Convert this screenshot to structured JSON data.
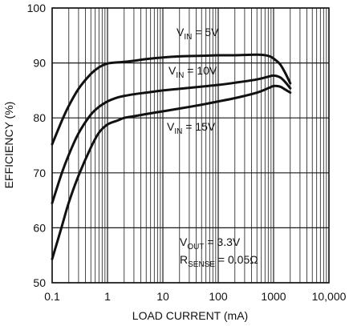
{
  "chart_data": {
    "type": "line",
    "xlabel": "LOAD CURRENT (mA)",
    "ylabel": "EFFICIENCY (%)",
    "x_scale": "log",
    "xlim": [
      0.1,
      10000
    ],
    "ylim": [
      50,
      100
    ],
    "x_ticks": [
      {
        "value": 0.1,
        "label": "0.1"
      },
      {
        "value": 1,
        "label": "1"
      },
      {
        "value": 10,
        "label": "10"
      },
      {
        "value": 100,
        "label": "100"
      },
      {
        "value": 1000,
        "label": "1000"
      },
      {
        "value": 10000,
        "label": "10,000"
      }
    ],
    "y_ticks": [
      {
        "value": 50,
        "label": "50"
      },
      {
        "value": 60,
        "label": "60"
      },
      {
        "value": 70,
        "label": "70"
      },
      {
        "value": 80,
        "label": "80"
      },
      {
        "value": 90,
        "label": "90"
      },
      {
        "value": 100,
        "label": "100"
      }
    ],
    "grid": true,
    "series": [
      {
        "name_main": "V",
        "name_sub": "IN",
        "name_rest": " = 5V",
        "points": [
          [
            0.1,
            75.2
          ],
          [
            0.15,
            79.5
          ],
          [
            0.2,
            82.2
          ],
          [
            0.3,
            85.3
          ],
          [
            0.5,
            88.0
          ],
          [
            0.7,
            89.2
          ],
          [
            1,
            89.9
          ],
          [
            1.5,
            90.1
          ],
          [
            2,
            90.2
          ],
          [
            3,
            90.4
          ],
          [
            5,
            90.7
          ],
          [
            10,
            91.0
          ],
          [
            20,
            91.2
          ],
          [
            50,
            91.3
          ],
          [
            100,
            91.4
          ],
          [
            200,
            91.4
          ],
          [
            500,
            91.5
          ],
          [
            800,
            91.3
          ],
          [
            1000,
            90.8
          ],
          [
            1300,
            89.8
          ],
          [
            1600,
            88.3
          ],
          [
            2000,
            86.3
          ]
        ]
      },
      {
        "name_main": "V",
        "name_sub": "IN",
        "name_rest": " = 10V",
        "points": [
          [
            0.1,
            64.5
          ],
          [
            0.15,
            70.0
          ],
          [
            0.2,
            73.3
          ],
          [
            0.3,
            77.2
          ],
          [
            0.5,
            80.6
          ],
          [
            0.7,
            82.0
          ],
          [
            1,
            83.0
          ],
          [
            1.5,
            83.7
          ],
          [
            2,
            84.0
          ],
          [
            3,
            84.3
          ],
          [
            5,
            84.6
          ],
          [
            10,
            85.0
          ],
          [
            20,
            85.3
          ],
          [
            50,
            85.7
          ],
          [
            100,
            86.0
          ],
          [
            200,
            86.4
          ],
          [
            500,
            87.0
          ],
          [
            800,
            87.5
          ],
          [
            1000,
            87.7
          ],
          [
            1300,
            87.4
          ],
          [
            1600,
            86.6
          ],
          [
            2000,
            85.4
          ]
        ]
      },
      {
        "name_main": "V",
        "name_sub": "IN",
        "name_rest": " = 15V",
        "points": [
          [
            0.1,
            54.3
          ],
          [
            0.15,
            60.3
          ],
          [
            0.2,
            64.6
          ],
          [
            0.3,
            69.5
          ],
          [
            0.5,
            74.6
          ],
          [
            0.7,
            77.3
          ],
          [
            1,
            78.8
          ],
          [
            1.5,
            79.5
          ],
          [
            2,
            80.0
          ],
          [
            3,
            80.3
          ],
          [
            5,
            80.7
          ],
          [
            10,
            81.2
          ],
          [
            20,
            81.7
          ],
          [
            50,
            82.4
          ],
          [
            100,
            83.0
          ],
          [
            200,
            83.6
          ],
          [
            500,
            84.6
          ],
          [
            800,
            85.4
          ],
          [
            1000,
            85.8
          ],
          [
            1300,
            85.7
          ],
          [
            1600,
            85.2
          ],
          [
            2000,
            84.6
          ]
        ]
      }
    ],
    "annotations": {
      "vout_main": "V",
      "vout_sub": "OUT",
      "vout_rest": " = 3.3V",
      "rsense_main": "R",
      "rsense_sub": "SENSE",
      "rsense_rest": " = 0.05Ω"
    }
  }
}
